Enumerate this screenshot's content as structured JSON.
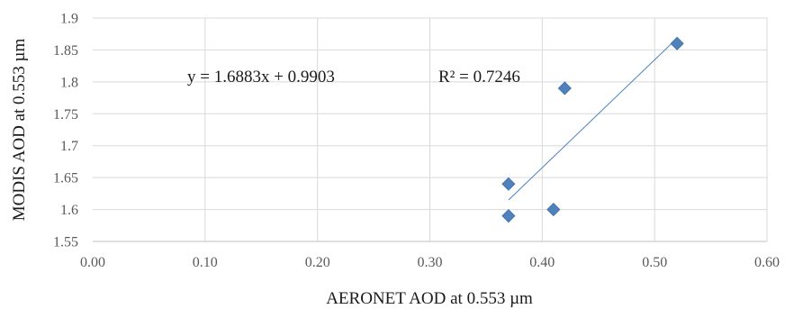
{
  "chart_data": {
    "type": "scatter",
    "xlabel": "AERONET AOD at 0.553 µm",
    "ylabel": "MODIS AOD at 0.553 µm",
    "xlim": [
      0.0,
      0.6
    ],
    "ylim": [
      1.55,
      1.9
    ],
    "x_ticks": [
      0.0,
      0.1,
      0.2,
      0.3,
      0.4,
      0.5,
      0.6
    ],
    "x_tick_labels": [
      "0.00",
      "0.10",
      "0.20",
      "0.30",
      "0.40",
      "0.50",
      "0.60"
    ],
    "y_ticks": [
      1.55,
      1.6,
      1.65,
      1.7,
      1.75,
      1.8,
      1.85,
      1.9
    ],
    "y_tick_labels": [
      "1.55",
      "1.6",
      "1.65",
      "1.7",
      "1.75",
      "1.8",
      "1.85",
      "1.9"
    ],
    "grid": true,
    "series": [
      {
        "marker": "diamond",
        "color": "#4f81bd",
        "points": [
          {
            "x": 0.37,
            "y": 1.64
          },
          {
            "x": 0.37,
            "y": 1.59
          },
          {
            "x": 0.41,
            "y": 1.6
          },
          {
            "x": 0.42,
            "y": 1.79
          },
          {
            "x": 0.52,
            "y": 1.86
          }
        ]
      }
    ],
    "trendline": {
      "type": "linear",
      "color": "#4f81bd",
      "x_range": [
        0.37,
        0.52
      ],
      "slope": 1.6883,
      "intercept": 0.9903
    },
    "annotations": {
      "equation": "y = 1.6883x + 0.9903",
      "r_squared": "R² = 0.7246"
    }
  }
}
